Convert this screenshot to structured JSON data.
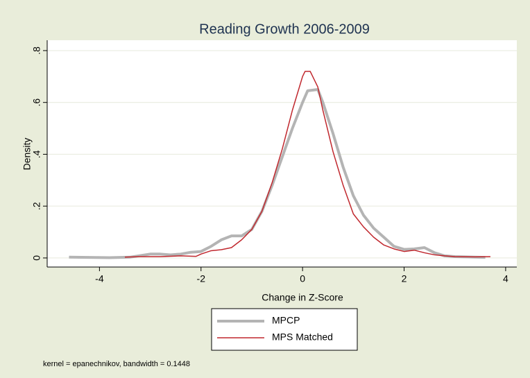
{
  "chart_data": {
    "type": "line",
    "title": "Reading Growth 2006-2009",
    "x_label": "Change in Z-Score",
    "y_label": "Density",
    "note": "kernel = epanechnikov, bandwidth = 0.1448",
    "xlim": [
      -5.03,
      4.22
    ],
    "ylim": [
      -0.035,
      0.84
    ],
    "xticks": [
      -4,
      -2,
      0,
      2,
      4
    ],
    "yticks": [
      0,
      {
        "value": 0.2,
        "label": ".2"
      },
      {
        "value": 0.4,
        "label": ".4"
      },
      {
        "value": 0.6,
        "label": ".6"
      },
      {
        "value": 0.8,
        "label": ".8"
      }
    ],
    "grid": true,
    "legend": "bottom",
    "series": [
      {
        "name": "MPCP",
        "color": "#b4b4b4",
        "x": [
          -4.6,
          -4.2,
          -3.8,
          -3.4,
          -3.0,
          -2.8,
          -2.6,
          -2.4,
          -2.2,
          -2.0,
          -1.8,
          -1.6,
          -1.4,
          -1.2,
          -1.0,
          -0.8,
          -0.6,
          -0.4,
          -0.2,
          0,
          0.1,
          0.3,
          0.4,
          0.6,
          0.8,
          1.0,
          1.2,
          1.4,
          1.6,
          1.8,
          2.0,
          2.2,
          2.4,
          2.6,
          2.8,
          3.0,
          3.4,
          3.6
        ],
        "values": [
          0.003,
          0.002,
          0.001,
          0.003,
          0.015,
          0.015,
          0.012,
          0.015,
          0.022,
          0.025,
          0.045,
          0.07,
          0.085,
          0.085,
          0.11,
          0.18,
          0.28,
          0.39,
          0.5,
          0.6,
          0.645,
          0.65,
          0.6,
          0.48,
          0.35,
          0.24,
          0.165,
          0.115,
          0.08,
          0.045,
          0.033,
          0.035,
          0.04,
          0.02,
          0.008,
          0.005,
          0.003,
          0.002
        ]
      },
      {
        "name": "MPS Matched",
        "color": "#c0272d",
        "x": [
          -3.5,
          -3.2,
          -2.8,
          -2.4,
          -2.1,
          -2.0,
          -1.8,
          -1.6,
          -1.4,
          -1.2,
          -1.0,
          -0.8,
          -0.6,
          -0.4,
          -0.2,
          0,
          0.05,
          0.15,
          0.3,
          0.4,
          0.6,
          0.8,
          1.0,
          1.2,
          1.4,
          1.6,
          1.8,
          2.0,
          2.2,
          2.4,
          2.6,
          2.8,
          3.0,
          3.4,
          3.7
        ],
        "values": [
          0.003,
          0.005,
          0.005,
          0.008,
          0.006,
          0.015,
          0.028,
          0.032,
          0.04,
          0.07,
          0.11,
          0.18,
          0.29,
          0.42,
          0.57,
          0.7,
          0.72,
          0.72,
          0.66,
          0.57,
          0.41,
          0.28,
          0.17,
          0.12,
          0.08,
          0.05,
          0.035,
          0.025,
          0.03,
          0.02,
          0.012,
          0.008,
          0.005,
          0.004,
          0.005
        ]
      }
    ]
  }
}
